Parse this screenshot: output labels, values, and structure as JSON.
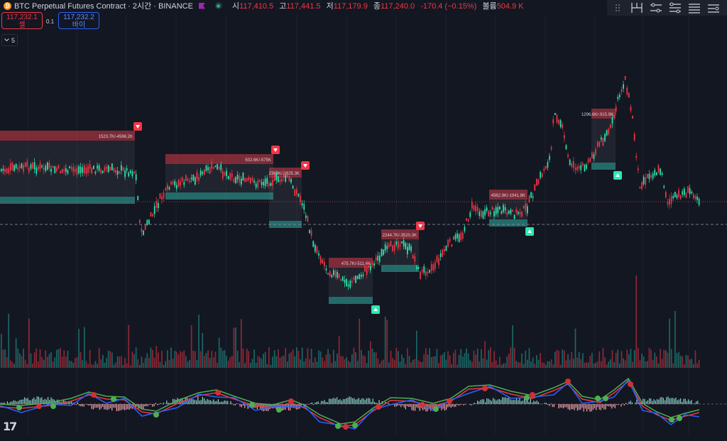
{
  "header": {
    "title": "BTC Perpetual Futures Contract · 2시간 · BINANCE",
    "ohlc": [
      {
        "label": "시",
        "value": "117,410.5"
      },
      {
        "label": "고",
        "value": "117,441.5"
      },
      {
        "label": "저",
        "value": "117,179.9"
      },
      {
        "label": "종",
        "value": "117,240.0"
      }
    ],
    "change": "-170.4 (−0.15%)",
    "volume_label": "볼륨",
    "volume_value": "504.9 K"
  },
  "trade": {
    "sell_price": "117,232.1",
    "sell_label": "셀",
    "spread": "0.1",
    "buy_price": "117,232.2",
    "buy_label": "바이"
  },
  "indicator_count": "5",
  "toolbar_icons": [
    "fork-icon",
    "sliders-icon",
    "sliders-icon",
    "list-icon",
    "adjust-icon"
  ],
  "colors": {
    "background": "#131722",
    "up": "#26a69a",
    "down": "#f23645",
    "bright_up": "#2ee8b0",
    "macd": "#2962ff",
    "signal": "#4caf50",
    "orb_red": "#d32f2f"
  },
  "chart_data": {
    "type": "candlestick",
    "price_line_label": "",
    "zones": [
      {
        "label": "1523.7K/-4566.2K",
        "signal": "sell"
      },
      {
        "label": "502.6K/-575K",
        "signal": "sell"
      },
      {
        "label": "2364K/-2825.3K",
        "signal": "sell"
      },
      {
        "label": "475.7K/-511.4K",
        "signal": "buy"
      },
      {
        "label": "2244.7K/-3520.3K",
        "signal": "sell"
      },
      {
        "label": "4562.9K/-1941.8K",
        "signal": "buy"
      },
      {
        "label": "1296.6K/-915.9K",
        "signal": "buy"
      }
    ]
  }
}
